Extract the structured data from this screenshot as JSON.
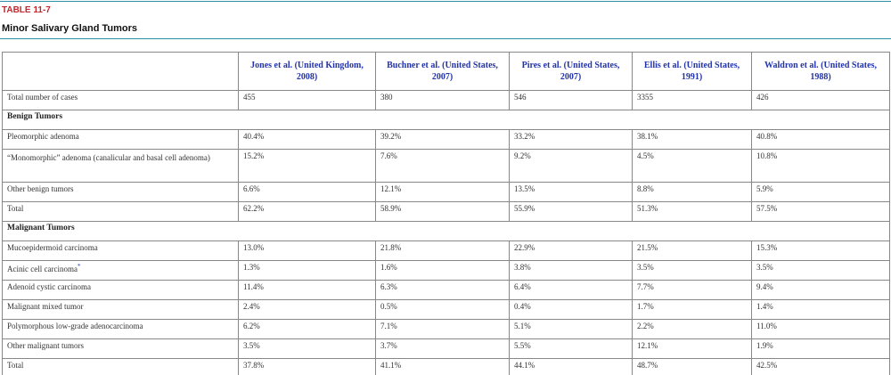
{
  "header": {
    "label": "TABLE 11-7",
    "title": "Minor Salivary Gland Tumors"
  },
  "table": {
    "columns": [
      "Jones et al. (United Kingdom, 2008)",
      "Buchner et al. (United States, 2007)",
      "Pires et al. (United States, 2007)",
      "Ellis et al. (United States, 1991)",
      "Waldron et al. (United States, 1988)"
    ],
    "rows": [
      {
        "label": "Total number of cases",
        "cells": [
          "455",
          "380",
          "546",
          "3355",
          "426"
        ]
      },
      {
        "section": "Benign Tumors"
      },
      {
        "label": "Pleomorphic adenoma",
        "cells": [
          "40.4%",
          "39.2%",
          "33.2%",
          "38.1%",
          "40.8%"
        ]
      },
      {
        "label": "“Monomorphic” adenoma (canalicular and basal cell adenoma)",
        "cells": [
          "15.2%",
          "7.6%",
          "9.2%",
          "4.5%",
          "10.8%"
        ]
      },
      {
        "label": "Other benign tumors",
        "cells": [
          "6.6%",
          "12.1%",
          "13.5%",
          "8.8%",
          "5.9%"
        ]
      },
      {
        "label": "Total",
        "cells": [
          "62.2%",
          "58.9%",
          "55.9%",
          "51.3%",
          "57.5%"
        ]
      },
      {
        "section": "Malignant Tumors"
      },
      {
        "label": "Mucoepidermoid carcinoma",
        "cells": [
          "13.0%",
          "21.8%",
          "22.9%",
          "21.5%",
          "15.3%"
        ]
      },
      {
        "label": "Acinic cell carcinoma",
        "note": "*",
        "cells": [
          "1.3%",
          "1.6%",
          "3.8%",
          "3.5%",
          "3.5%"
        ]
      },
      {
        "label": "Adenoid cystic carcinoma",
        "cells": [
          "11.4%",
          "6.3%",
          "6.4%",
          "7.7%",
          "9.4%"
        ]
      },
      {
        "label": "Malignant mixed tumor",
        "cells": [
          "2.4%",
          "0.5%",
          "0.4%",
          "1.7%",
          "1.4%"
        ]
      },
      {
        "label": "Polymorphous low-grade adenocarcinoma",
        "cells": [
          "6.2%",
          "7.1%",
          "5.1%",
          "2.2%",
          "11.0%"
        ]
      },
      {
        "label": "Other malignant tumors",
        "cells": [
          "3.5%",
          "3.7%",
          "5.5%",
          "12.1%",
          "1.9%"
        ]
      },
      {
        "label": "Total",
        "cells": [
          "37.8%",
          "41.1%",
          "44.1%",
          "48.7%",
          "42.5%"
        ]
      }
    ]
  }
}
